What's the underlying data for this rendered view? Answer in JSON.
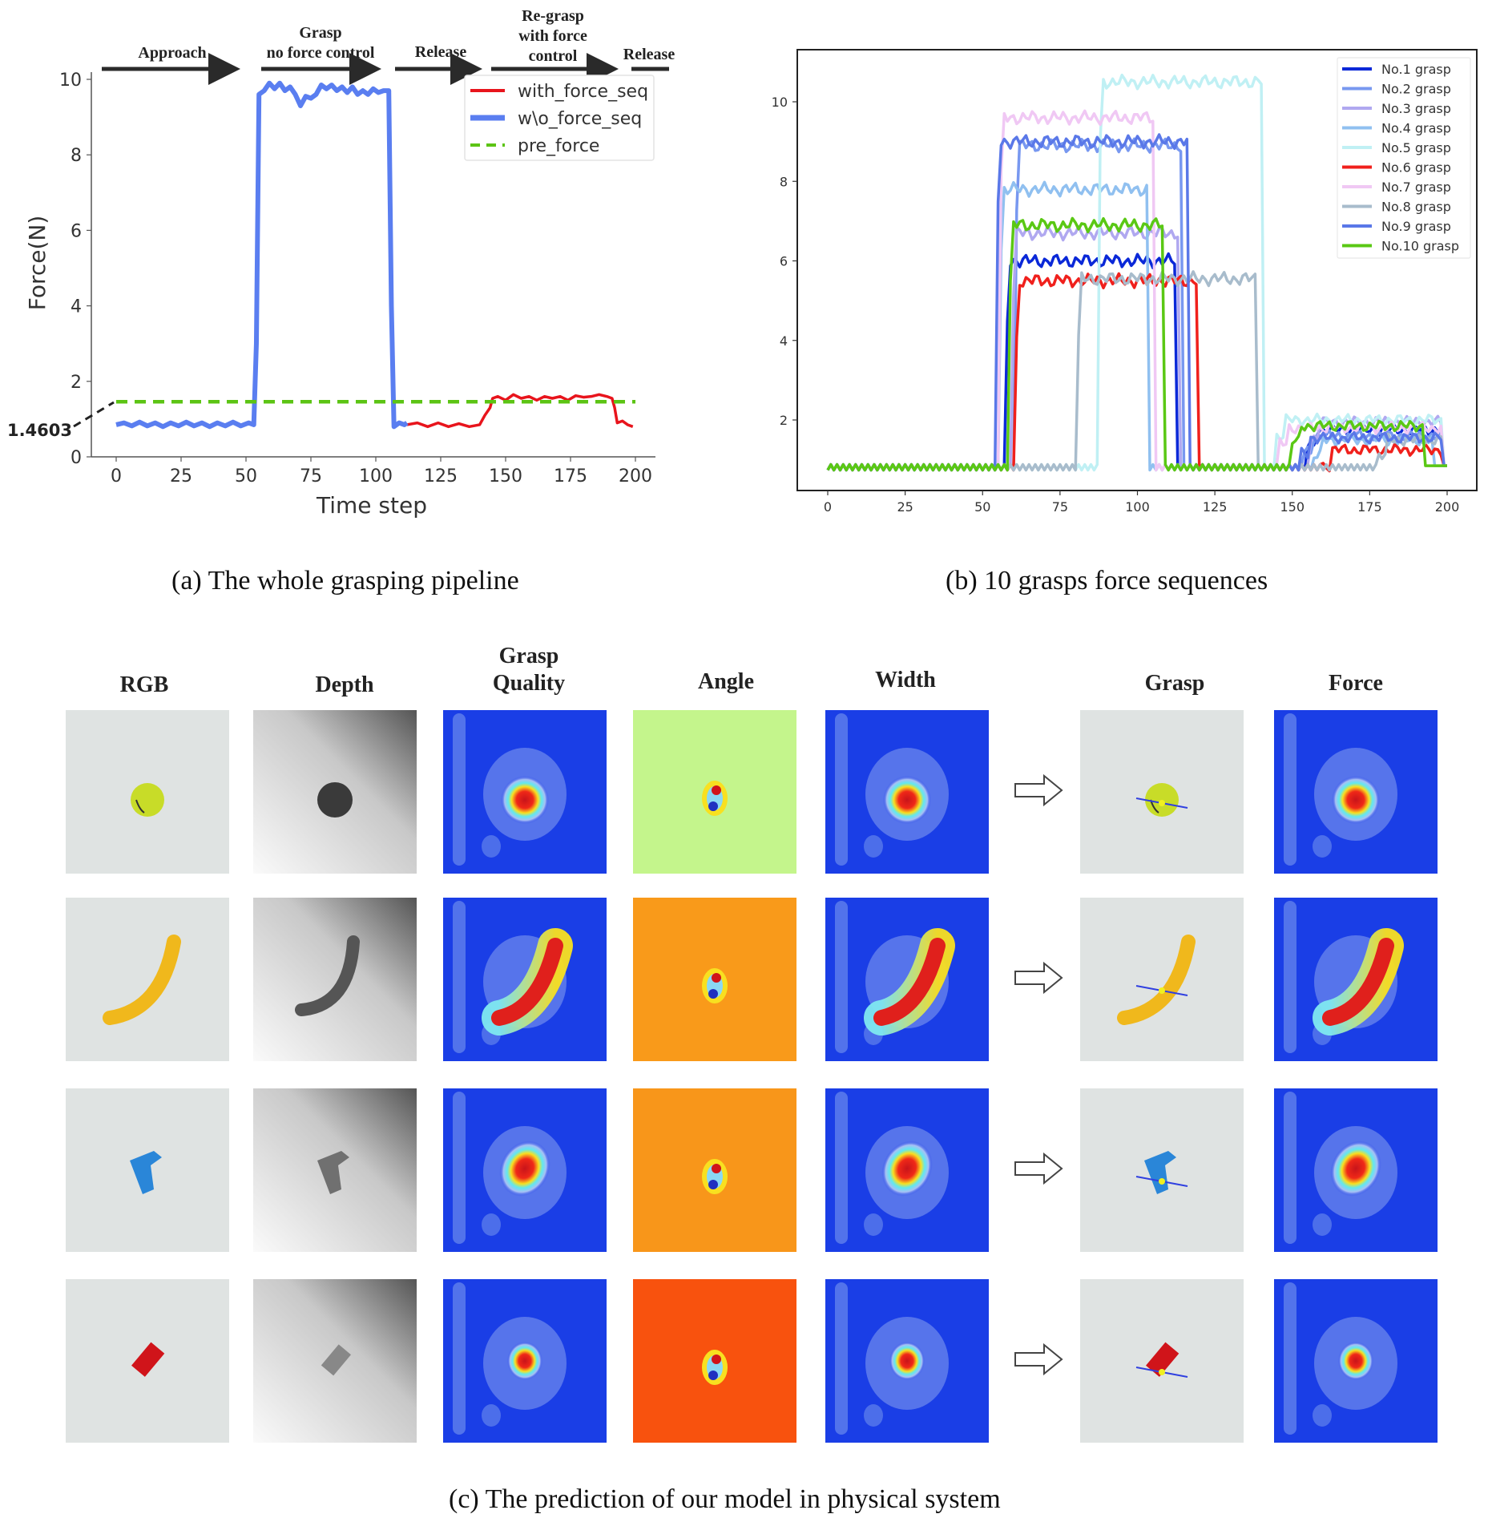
{
  "figure": {
    "subfigure_a": {
      "caption": "(a)  The whole grasping pipeline",
      "phases": [
        {
          "label": "Approach"
        },
        {
          "label": "Grasp\nno force control"
        },
        {
          "label": "Release"
        },
        {
          "label": "Re-grasp\nwith force\ncontrol"
        },
        {
          "label": "Release"
        }
      ],
      "annotation": "1.4603"
    },
    "subfigure_b": {
      "caption": "(b)  10 grasps force sequences"
    },
    "subfigure_c": {
      "caption": "(c)  The prediction of our model in physical system",
      "column_headers": [
        "RGB",
        "Depth",
        "Grasp\nQuality",
        "Angle",
        "Width",
        "Grasp",
        "Force"
      ],
      "rows": [
        {
          "object": "tennis ball",
          "object_color": "#c8dc28",
          "angle_bg": "#c4f58c"
        },
        {
          "object": "banana",
          "object_color": "#f0b81c",
          "angle_bg": "#f99a1a"
        },
        {
          "object": "blue toy part",
          "object_color": "#2a86d8",
          "angle_bg": "#f8961a"
        },
        {
          "object": "red block",
          "object_color": "#d0141a",
          "angle_bg": "#f8520e"
        }
      ]
    }
  },
  "chart_data": [
    {
      "type": "line",
      "title": "",
      "xlabel": "Time step",
      "ylabel": "Force(N)",
      "xlim": [
        -5,
        208
      ],
      "ylim": [
        0,
        10.1
      ],
      "xticks": [
        0,
        25,
        50,
        75,
        100,
        125,
        150,
        175,
        200
      ],
      "yticks": [
        0,
        2,
        4,
        6,
        8,
        10
      ],
      "grid": false,
      "legend": "top-right",
      "series": [
        {
          "name": "with_force_seq",
          "color": "#e8141c",
          "style": "solid",
          "x": [
            112,
            116,
            120,
            124,
            128,
            132,
            136,
            140,
            142,
            144,
            145,
            147,
            150,
            153,
            156,
            159,
            162,
            165,
            168,
            171,
            174,
            177,
            180,
            183,
            186,
            189,
            191,
            192,
            193,
            195,
            197,
            199
          ],
          "y": [
            0.85,
            0.9,
            0.8,
            0.9,
            0.8,
            0.88,
            0.8,
            0.85,
            1.1,
            1.3,
            1.55,
            1.6,
            1.5,
            1.65,
            1.55,
            1.6,
            1.5,
            1.6,
            1.55,
            1.6,
            1.5,
            1.62,
            1.58,
            1.6,
            1.65,
            1.6,
            1.55,
            1.3,
            0.9,
            0.95,
            0.85,
            0.8
          ]
        },
        {
          "name": "w\\o_force_seq",
          "color": "#5a7ef0",
          "style": "solid",
          "x": [
            0,
            3,
            6,
            9,
            12,
            15,
            18,
            21,
            24,
            27,
            30,
            33,
            36,
            39,
            42,
            45,
            48,
            51,
            53,
            54,
            55,
            57,
            59,
            61,
            63,
            65,
            67,
            69,
            71,
            73,
            75,
            77,
            79,
            81,
            83,
            85,
            87,
            89,
            91,
            93,
            95,
            97,
            99,
            101,
            103,
            105,
            106,
            107,
            109,
            111,
            112
          ],
          "y": [
            0.85,
            0.9,
            0.82,
            0.92,
            0.82,
            0.9,
            0.8,
            0.9,
            0.82,
            0.92,
            0.82,
            0.9,
            0.8,
            0.9,
            0.82,
            0.92,
            0.82,
            0.9,
            0.85,
            3.0,
            9.6,
            9.7,
            9.9,
            9.75,
            9.9,
            9.7,
            9.8,
            9.6,
            9.3,
            9.55,
            9.5,
            9.6,
            9.85,
            9.75,
            9.85,
            9.7,
            9.8,
            9.65,
            9.8,
            9.6,
            9.7,
            9.6,
            9.75,
            9.65,
            9.7,
            9.7,
            4.0,
            0.8,
            0.9,
            0.85,
            0.9
          ]
        },
        {
          "name": "pre_force",
          "color": "#5cc414",
          "style": "dashed",
          "x": [
            0,
            200
          ],
          "y": [
            1.46,
            1.46
          ]
        }
      ],
      "annotations": [
        {
          "text": "1.4603",
          "x": 0,
          "y": 1.4603
        }
      ]
    },
    {
      "type": "line",
      "title": "",
      "xlabel": "",
      "ylabel": "",
      "xlim": [
        -7,
        208
      ],
      "ylim": [
        0,
        11.3
      ],
      "xticks": [
        0,
        25,
        50,
        75,
        100,
        125,
        150,
        175,
        200
      ],
      "yticks": [
        2,
        4,
        6,
        8,
        10
      ],
      "grid": false,
      "legend": "top-right",
      "series": [
        {
          "name": "No.1 grasp",
          "color": "#0a28d8",
          "base": 0.8,
          "grasp_start": 58,
          "grasp_end": 113,
          "grasp_level": 6.0,
          "regrasp_start": 155,
          "regrasp_end": 199,
          "regrasp_level": 1.75
        },
        {
          "name": "No.2 grasp",
          "color": "#7898f0",
          "base": 0.8,
          "grasp_start": 61,
          "grasp_end": 115,
          "grasp_level": 8.9,
          "regrasp_start": 154,
          "regrasp_end": 199,
          "regrasp_level": 1.6
        },
        {
          "name": "No.3 grasp",
          "color": "#b0a8f0",
          "base": 0.8,
          "grasp_start": 60,
          "grasp_end": 114,
          "grasp_level": 6.7,
          "regrasp_start": 156,
          "regrasp_end": 199,
          "regrasp_level": 1.95
        },
        {
          "name": "No.4 grasp",
          "color": "#90c0f0",
          "base": 0.8,
          "grasp_start": 56,
          "grasp_end": 104,
          "grasp_level": 7.8,
          "regrasp_start": 157,
          "regrasp_end": 196,
          "regrasp_level": 1.5
        },
        {
          "name": "No.5 grasp",
          "color": "#c0f0f4",
          "base": 0.8,
          "grasp_start": 88,
          "grasp_end": 141,
          "grasp_level": 10.5,
          "regrasp_start": 145,
          "regrasp_end": 199,
          "regrasp_level": 2.0
        },
        {
          "name": "No.6 grasp",
          "color": "#f0201c",
          "base": 0.8,
          "grasp_start": 61,
          "grasp_end": 120,
          "grasp_level": 5.5,
          "regrasp_start": 160,
          "regrasp_end": 199,
          "regrasp_level": 1.25
        },
        {
          "name": "No.7 grasp",
          "color": "#f0c8f4",
          "base": 0.8,
          "grasp_start": 56,
          "grasp_end": 106,
          "grasp_level": 9.6,
          "regrasp_start": 146,
          "regrasp_end": 199,
          "regrasp_level": 1.8
        },
        {
          "name": "No.8 grasp",
          "color": "#a8bccc",
          "base": 0.8,
          "grasp_start": 81,
          "grasp_end": 139,
          "grasp_level": 5.55,
          "regrasp_start": 178,
          "regrasp_end": 199,
          "regrasp_level": 1.5
        },
        {
          "name": "No.9 grasp",
          "color": "#5a78e8",
          "base": 0.8,
          "grasp_start": 55,
          "grasp_end": 117,
          "grasp_level": 9.0,
          "regrasp_start": 153,
          "regrasp_end": 199,
          "regrasp_level": 1.55
        },
        {
          "name": "No.10 grasp",
          "color": "#5ac814",
          "base": 0.8,
          "grasp_start": 59,
          "grasp_end": 109,
          "grasp_level": 6.9,
          "regrasp_start": 150,
          "regrasp_end": 193,
          "regrasp_level": 1.85
        }
      ]
    }
  ]
}
